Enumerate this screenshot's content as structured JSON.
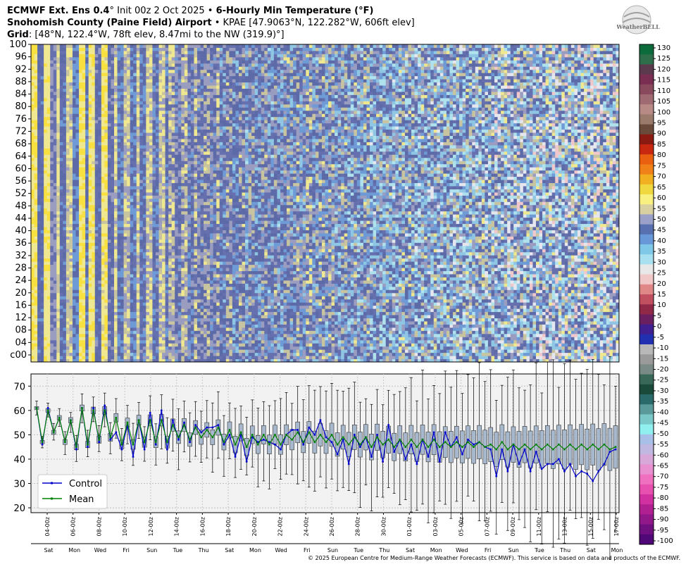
{
  "header": {
    "line1_bold_a": "ECMWF Ext.  Ens 0.4",
    "line1_deg": "°",
    "line1_plain": " Init 00z 2 Oct 2025 • ",
    "line1_bold_b": "6-Hourly Min Temperature (°F)",
    "line2_bold": "Snohomish County (Paine Field) Airport",
    "line2_plain": " • KPAE [47.9063°N, 122.282°W, 606ft elev]",
    "line3_bold": "Grid",
    "line3_plain": ": [48°N, 122.4°W, 78ft elev, 8.47mi to the NW (319.9)°]"
  },
  "logo": {
    "text": "WeatherBELL"
  },
  "copyright": "© 2025 European Centre for Medium-Range Weather Forecasts (ECMWF). This service is based on data and products of the ECMWF.",
  "colors": {
    "control": "#0000cc",
    "mean": "#008000",
    "box_fill": "#a8b8cc",
    "panel_bg": "#f2f2f2"
  },
  "chart_data": [
    {
      "type": "heatmap",
      "title": "",
      "ylabel": "",
      "y_tick_labels": [
        "00",
        "04",
        "08",
        "12",
        "16",
        "20",
        "24",
        "28",
        "32",
        "36",
        "40",
        "44",
        "48",
        "52",
        "56",
        "60",
        "64",
        "68",
        "72",
        "76",
        "80",
        "84",
        "88",
        "92",
        "96",
        "100"
      ],
      "y_bottom_label": "c00",
      "members": 101,
      "timesteps": 184
    },
    {
      "type": "box",
      "title": "",
      "ylim": [
        18,
        75
      ],
      "yticks": [
        20,
        30,
        40,
        50,
        60,
        70
      ],
      "grid": true,
      "legend_position": "lower-left",
      "series": [
        {
          "name": "Control",
          "values": [
            61,
            46,
            61,
            51,
            57,
            47,
            56,
            44,
            61,
            45,
            61,
            47,
            62,
            48,
            51,
            44,
            54,
            41,
            56,
            44,
            59,
            46,
            60,
            44,
            56,
            48,
            55,
            47,
            54,
            51,
            53,
            53,
            54,
            46,
            50,
            41,
            50,
            39,
            49,
            47,
            48,
            47,
            46,
            44,
            50,
            52,
            52,
            46,
            53,
            50,
            56,
            49,
            47,
            42,
            48,
            38,
            50,
            45,
            49,
            41,
            50,
            39,
            54,
            43,
            48,
            40,
            46,
            38,
            48,
            41,
            51,
            39,
            51,
            45,
            49,
            42,
            48,
            46,
            47,
            45,
            44,
            33,
            44,
            35,
            46,
            38,
            44,
            35,
            43,
            36,
            38,
            38,
            40,
            35,
            38,
            33,
            35,
            34,
            31,
            35,
            38,
            43,
            44
          ]
        },
        {
          "name": "Mean",
          "values": [
            61,
            47,
            60,
            51,
            57,
            47,
            56,
            45,
            61,
            46,
            60,
            48,
            60,
            49,
            57,
            46,
            55,
            46,
            56,
            47,
            56,
            47,
            56,
            47,
            54,
            49,
            54,
            48,
            53,
            49,
            52,
            49,
            53,
            47,
            52,
            46,
            51,
            45,
            50,
            46,
            50,
            46,
            50,
            46,
            50,
            48,
            51,
            47,
            51,
            47,
            50,
            47,
            50,
            46,
            49,
            46,
            49,
            46,
            49,
            45,
            49,
            46,
            48,
            45,
            48,
            45,
            48,
            45,
            48,
            45,
            48,
            45,
            47,
            45,
            47,
            45,
            47,
            45,
            47,
            45,
            46,
            44,
            47,
            44,
            46,
            44,
            46,
            44,
            46,
            44,
            46,
            44,
            46,
            44,
            46,
            44,
            46,
            44,
            46,
            44,
            46,
            44,
            45
          ]
        }
      ],
      "x_tick_labels": [
        "04-00z",
        "06-00z",
        "08-00z",
        "10-00z",
        "12-00z",
        "14-00z",
        "16-00z",
        "18-00z",
        "20-00z",
        "22-00z",
        "24-00z",
        "26-00z",
        "28-00z",
        "30-00z",
        "01-00z",
        "03-00z",
        "05-00z",
        "07-00z",
        "09-00z",
        "11-00z",
        "13-00z",
        "15-00z",
        "17-00z"
      ],
      "day_labels": [
        "Sat",
        "Mon",
        "Wed",
        "Fri",
        "Sun",
        "Tue",
        "Thu",
        "Sat",
        "Mon",
        "Wed",
        "Fri",
        "Sun",
        "Tue",
        "Thu",
        "Sat",
        "Mon",
        "Wed",
        "Fri",
        "Sun",
        "Tue",
        "Thu",
        "Sat",
        "Mon"
      ]
    }
  ],
  "colorbar": {
    "tick_labels": [
      "130",
      "125",
      "120",
      "115",
      "110",
      "105",
      "100",
      "95",
      "90",
      "85",
      "80",
      "75",
      "70",
      "65",
      "60",
      "55",
      "50",
      "45",
      "40",
      "35",
      "30",
      "25",
      "20",
      "15",
      "10",
      "5",
      "0",
      "-5",
      "-10",
      "-15",
      "-20",
      "-25",
      "-30",
      "-35",
      "-40",
      "-45",
      "-50",
      "-55",
      "-60",
      "-65",
      "-70",
      "-75",
      "-80",
      "-85",
      "-90",
      "-95",
      "-100"
    ],
    "colors": [
      "#0c6b3a",
      "#2f6e4a",
      "#5c3a4e",
      "#7a2e52",
      "#8a4a5e",
      "#a06a72",
      "#b88a86",
      "#9a7a6a",
      "#6a4a3a",
      "#8a1a12",
      "#c82810",
      "#e86010",
      "#f08018",
      "#f0b020",
      "#f0d840",
      "#f8f080",
      "#d8d0a0",
      "#9aa0c8",
      "#5870b0",
      "#6898d8",
      "#80c8e8",
      "#a8e0f0",
      "#e8e8e8",
      "#f0c8c8",
      "#e08888",
      "#c05060",
      "#902848",
      "#6a2060",
      "#402090",
      "#2030b0",
      "#b8b8b8",
      "#9a9a9a",
      "#7a8a86",
      "#3a6858",
      "#1a4a3a",
      "#2a6a6a",
      "#5a9a9a",
      "#7ac8c8",
      "#90f0f0",
      "#a8c0e8",
      "#c0b8e0",
      "#d8a8d8",
      "#e890d0",
      "#f070c0",
      "#e850b0",
      "#d030a0",
      "#b02090",
      "#901888",
      "#701080",
      "#500878"
    ]
  }
}
